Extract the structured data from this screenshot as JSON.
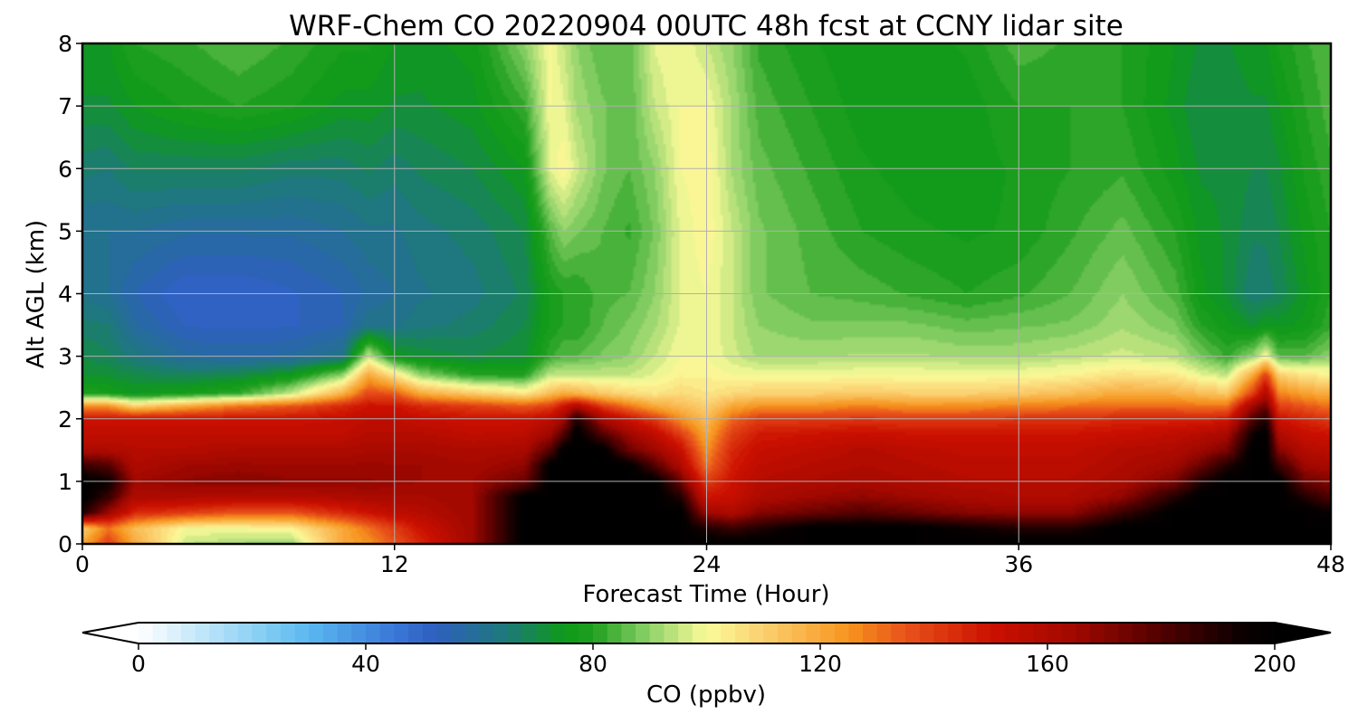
{
  "chart_data": {
    "type": "heatmap",
    "title": "WRF-Chem CO  20220904 00UTC 48h fcst at CCNY lidar site",
    "xlabel": "Forecast Time (Hour)",
    "ylabel": "Alt AGL (km)",
    "xlim": [
      0,
      48
    ],
    "ylim": [
      0,
      8
    ],
    "x_ticks": [
      0,
      12,
      24,
      36,
      48
    ],
    "y_ticks": [
      0,
      1,
      2,
      3,
      4,
      5,
      6,
      7,
      8
    ],
    "grid": true,
    "colorbar": {
      "label": "CO  (ppbv)",
      "min": 0,
      "max": 200,
      "ticks": [
        0,
        40,
        80,
        120,
        160,
        200
      ],
      "extend": "both",
      "placement": "bottom",
      "stops": [
        {
          "value": 0,
          "color": "#ffffff"
        },
        {
          "value": 20,
          "color": "#8fd2f5"
        },
        {
          "value": 30,
          "color": "#5ab8f0"
        },
        {
          "value": 45,
          "color": "#3a78d8"
        },
        {
          "value": 52,
          "color": "#2f5fc0"
        },
        {
          "value": 65,
          "color": "#1d7a78"
        },
        {
          "value": 75,
          "color": "#0e9a18"
        },
        {
          "value": 80,
          "color": "#1f9f1f"
        },
        {
          "value": 90,
          "color": "#8fd26a"
        },
        {
          "value": 100,
          "color": "#fbfb9a"
        },
        {
          "value": 110,
          "color": "#fbd070"
        },
        {
          "value": 125,
          "color": "#f7941d"
        },
        {
          "value": 135,
          "color": "#e8521a"
        },
        {
          "value": 150,
          "color": "#cc1000"
        },
        {
          "value": 165,
          "color": "#a00800"
        },
        {
          "value": 180,
          "color": "#500000"
        },
        {
          "value": 195,
          "color": "#080000"
        },
        {
          "value": 200,
          "color": "#000000"
        }
      ]
    },
    "profiles": {
      "altitudes_km": [
        0,
        0.25,
        0.5,
        0.75,
        1.0,
        1.25,
        1.5,
        1.75,
        2.0,
        2.2,
        2.4,
        2.7,
        3.0,
        3.5,
        4.0,
        5.0,
        6.0,
        7.0,
        8.0
      ],
      "times_h": [
        0,
        1,
        2,
        4,
        6,
        8,
        10,
        11,
        12,
        13,
        15,
        17,
        18,
        18.5,
        19,
        20,
        21,
        22,
        23,
        24,
        25,
        26,
        28,
        30,
        32,
        34,
        36,
        38,
        40,
        42,
        43,
        44,
        45,
        45.5,
        46,
        47,
        48
      ],
      "values_ppbv": [
        [
          120,
          110,
          190,
          200,
          200,
          185,
          160,
          155,
          150,
          125,
          80,
          72,
          70,
          66,
          62,
          60,
          66,
          72,
          75
        ],
        [
          140,
          130,
          165,
          185,
          195,
          180,
          160,
          155,
          150,
          125,
          78,
          72,
          68,
          65,
          60,
          60,
          65,
          72,
          75
        ],
        [
          120,
          115,
          145,
          160,
          165,
          160,
          158,
          155,
          150,
          110,
          75,
          70,
          64,
          58,
          55,
          60,
          68,
          75,
          80
        ],
        [
          95,
          100,
          140,
          160,
          168,
          165,
          158,
          155,
          150,
          120,
          78,
          68,
          58,
          52,
          50,
          58,
          68,
          78,
          82
        ],
        [
          92,
          100,
          135,
          158,
          170,
          166,
          160,
          155,
          150,
          130,
          82,
          70,
          57,
          52,
          50,
          58,
          68,
          80,
          85
        ],
        [
          90,
          102,
          135,
          158,
          168,
          165,
          160,
          155,
          150,
          135,
          95,
          75,
          58,
          52,
          52,
          58,
          66,
          78,
          82
        ],
        [
          120,
          120,
          145,
          160,
          168,
          165,
          160,
          155,
          152,
          145,
          118,
          90,
          62,
          55,
          55,
          60,
          66,
          74,
          78
        ],
        [
          125,
          130,
          150,
          162,
          168,
          166,
          162,
          158,
          155,
          150,
          138,
          120,
          95,
          62,
          58,
          62,
          68,
          74,
          78
        ],
        [
          135,
          140,
          155,
          162,
          166,
          165,
          162,
          158,
          155,
          150,
          135,
          105,
          75,
          62,
          60,
          62,
          66,
          72,
          75
        ],
        [
          145,
          150,
          158,
          162,
          165,
          165,
          162,
          158,
          152,
          145,
          120,
          90,
          72,
          64,
          62,
          64,
          68,
          72,
          74
        ],
        [
          165,
          165,
          165,
          165,
          165,
          163,
          160,
          155,
          150,
          140,
          112,
          80,
          70,
          66,
          64,
          66,
          70,
          74,
          76
        ],
        [
          200,
          200,
          200,
          200,
          175,
          168,
          162,
          156,
          150,
          135,
          105,
          80,
          72,
          70,
          68,
          70,
          75,
          82,
          90
        ],
        [
          200,
          200,
          200,
          200,
          200,
          200,
          180,
          165,
          155,
          140,
          115,
          95,
          82,
          78,
          78,
          85,
          98,
          100,
          100
        ],
        [
          200,
          200,
          200,
          200,
          200,
          200,
          200,
          180,
          165,
          150,
          120,
          95,
          85,
          80,
          80,
          90,
          102,
          98,
          95
        ],
        [
          200,
          200,
          200,
          200,
          200,
          200,
          200,
          200,
          190,
          160,
          118,
          95,
          85,
          80,
          80,
          88,
          96,
          92,
          90
        ],
        [
          200,
          200,
          200,
          200,
          200,
          200,
          200,
          180,
          162,
          140,
          112,
          95,
          88,
          85,
          84,
          85,
          88,
          88,
          85
        ],
        [
          200,
          200,
          200,
          200,
          200,
          200,
          175,
          165,
          150,
          130,
          108,
          95,
          90,
          88,
          85,
          82,
          85,
          85,
          85
        ],
        [
          200,
          200,
          200,
          200,
          200,
          180,
          165,
          155,
          140,
          120,
          105,
          98,
          95,
          92,
          90,
          88,
          90,
          95,
          98
        ],
        [
          200,
          200,
          200,
          190,
          175,
          160,
          152,
          140,
          125,
          115,
          108,
          102,
          100,
          98,
          98,
          98,
          100,
          100,
          100
        ],
        [
          200,
          190,
          165,
          150,
          140,
          130,
          125,
          120,
          115,
          110,
          105,
          102,
          100,
          100,
          100,
          102,
          102,
          100,
          95
        ],
        [
          200,
          185,
          160,
          152,
          150,
          148,
          145,
          140,
          132,
          120,
          108,
          100,
          96,
          95,
          95,
          95,
          92,
          92,
          90
        ],
        [
          200,
          190,
          170,
          160,
          158,
          155,
          152,
          148,
          140,
          125,
          110,
          100,
          92,
          90,
          88,
          88,
          86,
          84,
          82
        ],
        [
          200,
          200,
          175,
          165,
          160,
          158,
          155,
          150,
          140,
          125,
          110,
          100,
          92,
          88,
          85,
          84,
          82,
          80,
          78
        ],
        [
          200,
          200,
          180,
          168,
          162,
          160,
          158,
          152,
          142,
          128,
          112,
          100,
          93,
          88,
          84,
          80,
          78,
          76,
          75
        ],
        [
          200,
          200,
          175,
          165,
          160,
          158,
          156,
          150,
          140,
          125,
          110,
          100,
          93,
          88,
          82,
          78,
          76,
          75,
          76
        ],
        [
          200,
          195,
          170,
          162,
          158,
          156,
          154,
          150,
          140,
          126,
          110,
          100,
          92,
          86,
          80,
          77,
          76,
          76,
          78
        ],
        [
          200,
          190,
          168,
          160,
          158,
          156,
          154,
          150,
          142,
          128,
          112,
          100,
          92,
          87,
          82,
          78,
          78,
          80,
          84
        ],
        [
          200,
          190,
          168,
          160,
          158,
          156,
          154,
          150,
          142,
          130,
          115,
          102,
          94,
          88,
          85,
          82,
          80,
          80,
          82
        ],
        [
          200,
          200,
          185,
          168,
          162,
          160,
          158,
          152,
          145,
          132,
          120,
          106,
          96,
          92,
          90,
          86,
          82,
          80,
          80
        ],
        [
          200,
          200,
          200,
          190,
          172,
          165,
          160,
          155,
          145,
          132,
          118,
          104,
          94,
          88,
          84,
          80,
          76,
          74,
          75
        ],
        [
          200,
          200,
          200,
          200,
          190,
          175,
          165,
          158,
          145,
          130,
          115,
          98,
          88,
          80,
          76,
          74,
          72,
          70,
          72
        ],
        [
          200,
          200,
          200,
          200,
          200,
          190,
          172,
          162,
          148,
          130,
          112,
          95,
          82,
          76,
          72,
          72,
          72,
          70,
          72
        ],
        [
          200,
          200,
          200,
          200,
          200,
          200,
          200,
          195,
          180,
          165,
          140,
          120,
          90,
          72,
          65,
          68,
          70,
          72,
          75
        ],
        [
          200,
          200,
          200,
          200,
          200,
          200,
          200,
          200,
          190,
          175,
          160,
          140,
          100,
          75,
          66,
          68,
          70,
          72,
          75
        ],
        [
          200,
          200,
          200,
          200,
          200,
          185,
          170,
          160,
          150,
          140,
          128,
          110,
          85,
          74,
          68,
          70,
          72,
          75,
          78
        ],
        [
          200,
          200,
          200,
          190,
          175,
          165,
          158,
          152,
          145,
          135,
          122,
          105,
          85,
          76,
          74,
          76,
          78,
          80,
          82
        ],
        [
          200,
          200,
          195,
          180,
          170,
          162,
          156,
          150,
          140,
          130,
          118,
          102,
          90,
          82,
          80,
          80,
          82,
          84,
          85
        ]
      ]
    }
  }
}
